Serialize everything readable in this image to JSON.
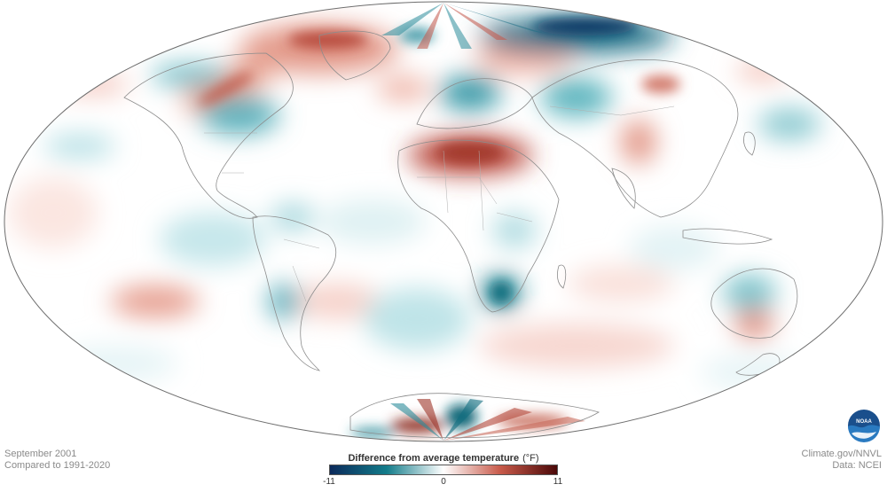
{
  "map": {
    "projection": "mollweide",
    "colors": {
      "cold_max": "#0b2a5b",
      "cold_mid": "#137c8a",
      "neutral": "#ffffff",
      "warm_mid": "#c85a4a",
      "warm_max": "#4a0808",
      "coastline": "#8c8c8c",
      "border": "#9a9a9a"
    }
  },
  "footer_left": {
    "line1": "September 2001",
    "line2": "Compared to 1991-2020"
  },
  "footer_right": {
    "line1": "Climate.gov/NNVL",
    "line2": "Data: NCEI"
  },
  "legend": {
    "title": "Difference from average temperature",
    "unit": "(°F)",
    "min_label": "-11",
    "mid_label": "0",
    "max_label": "11"
  },
  "logo": {
    "text": "NOAA",
    "icon": "noaa-logo-icon"
  }
}
